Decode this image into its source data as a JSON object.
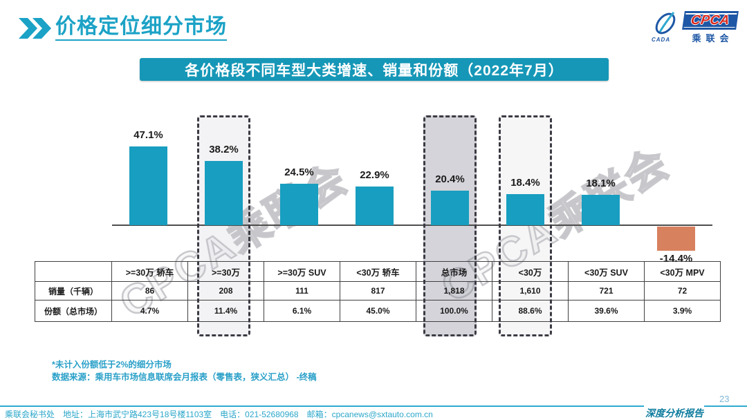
{
  "header": {
    "title": "价格定位细分市场"
  },
  "logo": {
    "abbr": "CPCA",
    "cn": "乘联会",
    "sub": "CADA"
  },
  "banner": {
    "title": "各价格段不同车型大类增速、销量和份额（2022年7月）"
  },
  "watermark": {
    "text": "CPCA乘联会"
  },
  "chart_data": {
    "type": "bar",
    "title": "各价格段不同车型大类增速、销量和份额（2022年7月）",
    "categories": [
      ">=30万 轿车",
      ">=30万",
      ">=30万 SUV",
      "<30万 轿车",
      "总市场",
      "<30万",
      "<30万 SUV",
      "<30万 MPV"
    ],
    "values": [
      47.1,
      38.2,
      24.5,
      22.9,
      20.4,
      18.4,
      18.1,
      -14.4
    ],
    "labels": [
      "47.1%",
      "38.2%",
      "24.5%",
      "22.9%",
      "20.4%",
      "18.4%",
      "18.1%",
      "-14.4%"
    ],
    "bar_color": "#189EC0",
    "negative_color": "#D8815F",
    "ylim": [
      -20,
      55
    ],
    "grid": false,
    "legend": false,
    "highlight_boxes": [
      {
        "category": ">=30万",
        "fill": "rgba(190,190,200,0.18)"
      },
      {
        "category": "总市场",
        "fill": "rgba(120,120,140,0.32)"
      },
      {
        "category": "<30万",
        "fill": "rgba(190,190,200,0.14)"
      }
    ]
  },
  "table": {
    "col_headers": [
      "",
      ">=30万 轿车",
      ">=30万",
      ">=30万 SUV",
      "<30万 轿车",
      "总市场",
      "<30万",
      "<30万 SUV",
      "<30万 MPV"
    ],
    "rows": [
      {
        "label": "销量（千辆）",
        "values": [
          "86",
          "208",
          "111",
          "817",
          "1,818",
          "1,610",
          "721",
          "72"
        ]
      },
      {
        "label": "份额（总市场）",
        "values": [
          "4.7%",
          "11.4%",
          "6.1%",
          "45.0%",
          "100.0%",
          "88.6%",
          "39.6%",
          "3.9%"
        ]
      }
    ]
  },
  "notes": {
    "line1": "*未计入份额低于2%的细分市场",
    "line2": "数据来源：乘用车市场信息联席会月报表（零售表，狭义汇总）  -终稿"
  },
  "footer": {
    "left": "乘联会秘书处　地址：上海市武宁路423号18号楼1103室　电话：021-52680968　邮箱：cpcanews@sxtauto.com.cn",
    "report": "深度分析报告",
    "page": "23"
  }
}
